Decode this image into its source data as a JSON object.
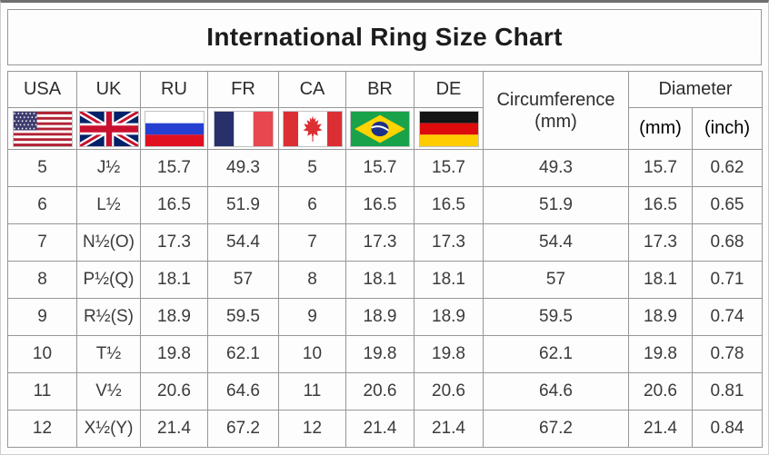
{
  "title": "International Ring Size Chart",
  "headers": {
    "circumference": "Circumference",
    "circumference_unit": "(mm)",
    "diameter": "Diameter",
    "diameter_unit_mm": "(mm)",
    "diameter_unit_inch": "(inch)"
  },
  "flags": [
    "usa-flag-icon",
    "uk-flag-icon",
    "russia-flag-icon",
    "france-flag-icon",
    "canada-flag-icon",
    "brazil-flag-icon",
    "germany-flag-icon"
  ],
  "chart_data": {
    "type": "table",
    "title": "International Ring Size Chart",
    "columns": [
      "USA",
      "UK",
      "RU",
      "FR",
      "CA",
      "BR",
      "DE",
      "Circumference (mm)",
      "Diameter (mm)",
      "Diameter (inch)"
    ],
    "rows": [
      [
        "5",
        "J½",
        "15.7",
        "49.3",
        "5",
        "15.7",
        "15.7",
        "49.3",
        "15.7",
        "0.62"
      ],
      [
        "6",
        "L½",
        "16.5",
        "51.9",
        "6",
        "16.5",
        "16.5",
        "51.9",
        "16.5",
        "0.65"
      ],
      [
        "7",
        "N½(O)",
        "17.3",
        "54.4",
        "7",
        "17.3",
        "17.3",
        "54.4",
        "17.3",
        "0.68"
      ],
      [
        "8",
        "P½(Q)",
        "18.1",
        "57",
        "8",
        "18.1",
        "18.1",
        "57",
        "18.1",
        "0.71"
      ],
      [
        "9",
        "R½(S)",
        "18.9",
        "59.5",
        "9",
        "18.9",
        "18.9",
        "59.5",
        "18.9",
        "0.74"
      ],
      [
        "10",
        "T½",
        "19.8",
        "62.1",
        "10",
        "19.8",
        "19.8",
        "62.1",
        "19.8",
        "0.78"
      ],
      [
        "11",
        "V½",
        "20.6",
        "64.6",
        "11",
        "20.6",
        "20.6",
        "64.6",
        "20.6",
        "0.81"
      ],
      [
        "12",
        "X½(Y)",
        "21.4",
        "67.2",
        "12",
        "21.4",
        "21.4",
        "67.2",
        "21.4",
        "0.84"
      ]
    ]
  },
  "colors": {
    "grid_border": "#979797",
    "text": "#3b3b3b",
    "background": "#fdfdfd"
  }
}
